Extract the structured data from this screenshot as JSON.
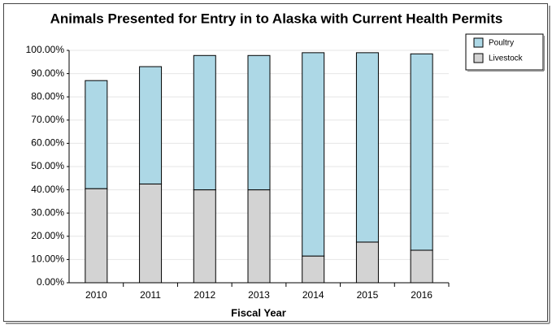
{
  "chart_data": {
    "type": "stacked_bar",
    "title": "Animals Presented for Entry in to Alaska with Current Health Permits",
    "x_label": "Fiscal Year",
    "categories": [
      "2010",
      "2011",
      "2012",
      "2013",
      "2014",
      "2015",
      "2016"
    ],
    "series": [
      {
        "name": "Livestock",
        "color": "#d3d3d3",
        "values": [
          40.5,
          42.5,
          40,
          40,
          11.5,
          17.5,
          14
        ]
      },
      {
        "name": "Poultry",
        "color": "#add8e6",
        "values": [
          46.5,
          50.5,
          57.8,
          57.8,
          87.5,
          81.5,
          84.5
        ]
      }
    ],
    "ylim": [
      0,
      100
    ],
    "yticks": [
      {
        "value": 0,
        "label": "0.00%"
      },
      {
        "value": 10,
        "label": "10.00%"
      },
      {
        "value": 20,
        "label": "20.00%"
      },
      {
        "value": 30,
        "label": "30.00%"
      },
      {
        "value": 40,
        "label": "40.00%"
      },
      {
        "value": 50,
        "label": "50.00%"
      },
      {
        "value": 60,
        "label": "60.00%"
      },
      {
        "value": 70,
        "label": "70.00%"
      },
      {
        "value": 80,
        "label": "80.00%"
      },
      {
        "value": 90,
        "label": "90.00%"
      },
      {
        "value": 100,
        "label": "100.00%"
      }
    ],
    "grid": true,
    "legend": "top-right"
  }
}
